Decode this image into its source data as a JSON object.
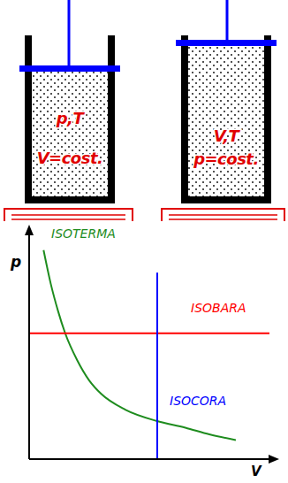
{
  "cylinders": [
    {
      "labels": [
        "p,T",
        "V=cost."
      ]
    },
    {
      "labels": [
        "V,T",
        "p=cost."
      ]
    }
  ],
  "chart_data": {
    "type": "line",
    "x_label": "V",
    "y_label": "p",
    "xlim": [
      0,
      10
    ],
    "ylim": [
      0,
      10
    ],
    "tick_labels": false,
    "grid": false,
    "series": [
      {
        "name": "ISOTERMA",
        "color": "#1e8c1e",
        "x": [
          0.6,
          0.9,
          1.2,
          1.5,
          2.0,
          2.5,
          3.0,
          4.0,
          5.3,
          6.5,
          7.5,
          8.6
        ],
        "values": [
          9.3,
          7.8,
          6.6,
          5.6,
          4.4,
          3.5,
          2.9,
          2.2,
          1.7,
          1.4,
          1.1,
          0.85
        ]
      },
      {
        "name": "ISOBARA",
        "color": "#ff0000",
        "x": [
          0,
          10
        ],
        "values": [
          5.6,
          5.6
        ]
      },
      {
        "name": "ISOCORA",
        "color": "#0000ff",
        "x": [
          5.33,
          5.33
        ],
        "values": [
          0,
          8.3
        ]
      }
    ]
  }
}
